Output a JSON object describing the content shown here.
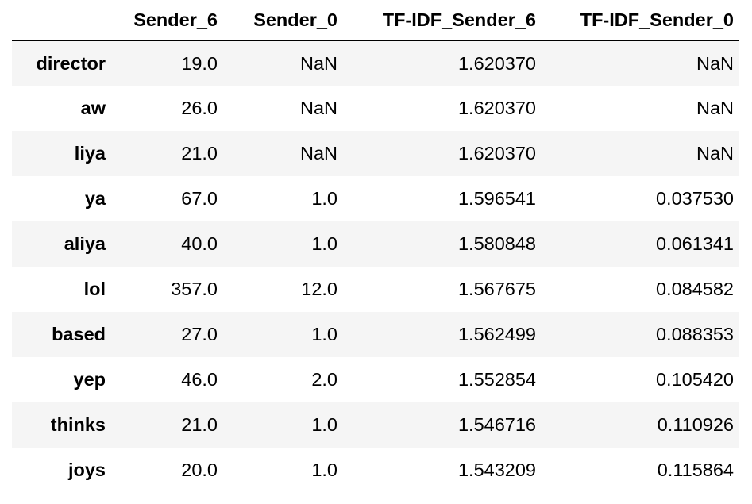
{
  "table": {
    "columns": [
      "",
      "Sender_6",
      "Sender_0",
      "TF-IDF_Sender_6",
      "TF-IDF_Sender_0"
    ],
    "rows": [
      {
        "index": "director",
        "cells": [
          "19.0",
          "NaN",
          "1.620370",
          "NaN"
        ]
      },
      {
        "index": "aw",
        "cells": [
          "26.0",
          "NaN",
          "1.620370",
          "NaN"
        ]
      },
      {
        "index": "liya",
        "cells": [
          "21.0",
          "NaN",
          "1.620370",
          "NaN"
        ]
      },
      {
        "index": "ya",
        "cells": [
          "67.0",
          "1.0",
          "1.596541",
          "0.037530"
        ]
      },
      {
        "index": "aliya",
        "cells": [
          "40.0",
          "1.0",
          "1.580848",
          "0.061341"
        ]
      },
      {
        "index": "lol",
        "cells": [
          "357.0",
          "12.0",
          "1.567675",
          "0.084582"
        ]
      },
      {
        "index": "based",
        "cells": [
          "27.0",
          "1.0",
          "1.562499",
          "0.088353"
        ]
      },
      {
        "index": "yep",
        "cells": [
          "46.0",
          "2.0",
          "1.552854",
          "0.105420"
        ]
      },
      {
        "index": "thinks",
        "cells": [
          "21.0",
          "1.0",
          "1.546716",
          "0.110926"
        ]
      },
      {
        "index": "joys",
        "cells": [
          "20.0",
          "1.0",
          "1.543209",
          "0.115864"
        ]
      }
    ]
  },
  "colors": {
    "stripe": "#f5f5f5",
    "header_rule": "#000000",
    "text": "#000000"
  }
}
